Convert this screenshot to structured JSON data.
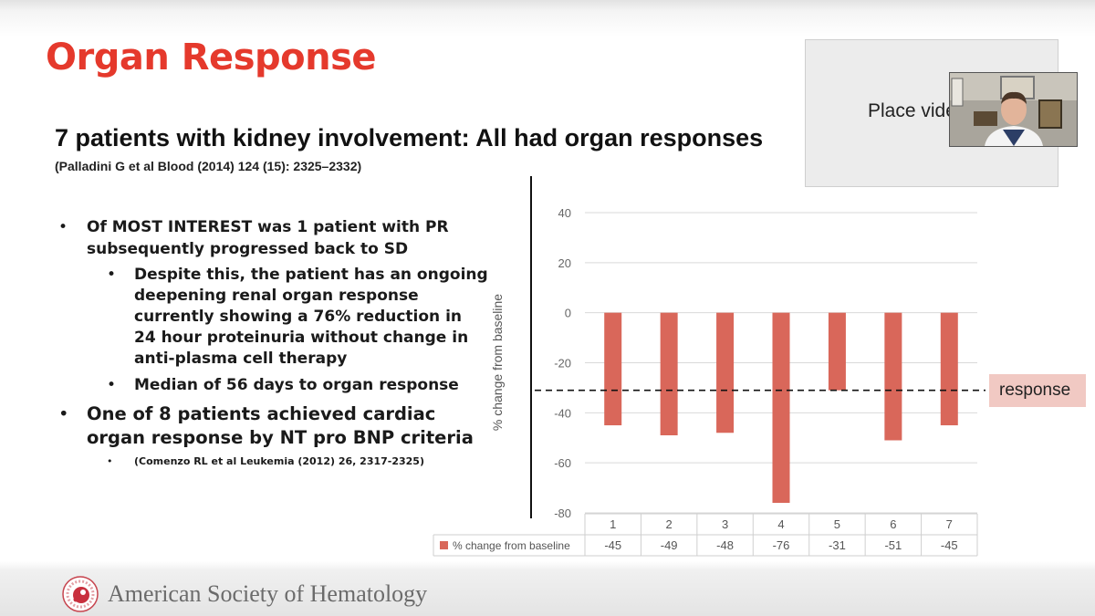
{
  "slide": {
    "title": "Organ Response",
    "subtitle": "7 patients with kidney involvement: All had organ responses",
    "citation": "(Palladini G et al Blood (2014) 124 (15): 2325–2332)",
    "bullets": {
      "b1_line1": "Of MOST INTEREST was 1 patient with PR",
      "b1_line2": "subsequently progressed back to SD",
      "b2_line1": "Despite this, the patient has an ongoing",
      "b2_line2": "deepening renal organ response",
      "b2_line3": "currently showing a 76% reduction in",
      "b2_line4": "24 hour proteinuria without change in",
      "b2_line5": "anti-plasma cell therapy",
      "b3": "Median of 56 days to organ response",
      "b4_line1": "One of 8 patients achieved cardiac",
      "b4_line2": "organ response by NT pro BNP criteria",
      "b5": "(Comenzo RL et al Leukemia (2012) 26, 2317-2325)"
    },
    "bullet_glyph": "•",
    "video_placeholder": "Place video",
    "response_label": "response",
    "footer": "American Society of Hematology"
  },
  "chart_data": {
    "type": "bar",
    "categories": [
      "1",
      "2",
      "3",
      "4",
      "5",
      "6",
      "7"
    ],
    "series": [
      {
        "name": "% change from baseline",
        "values": [
          -45,
          -49,
          -48,
          -76,
          -31,
          -51,
          -45
        ],
        "color": "#d9675a"
      }
    ],
    "ylabel": "% change from baseline",
    "ylim": [
      -80,
      40
    ],
    "yticks": [
      "40",
      "20",
      "0",
      "-20",
      "-40",
      "-60",
      "-80"
    ],
    "table_values": [
      "-45",
      "-49",
      "-48",
      "-76",
      "-31",
      "-51",
      "-45"
    ],
    "reference_line": {
      "value": -31,
      "style": "dashed"
    },
    "grid": true,
    "legend": "data table"
  },
  "colors": {
    "title": "#e5392c",
    "bar": "#d9675a",
    "response_bg": "#f1c9c3"
  }
}
